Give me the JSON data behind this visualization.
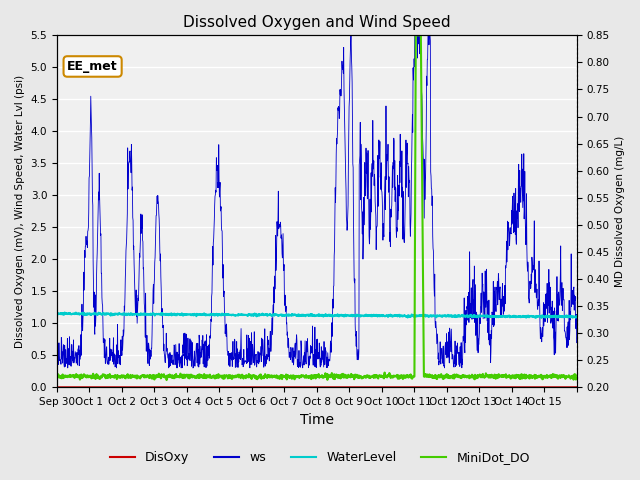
{
  "title": "Dissolved Oxygen and Wind Speed",
  "ylabel_left": "Dissolved Oxygen (mV), Wind Speed, Water Lvl (psi)",
  "ylabel_right": "MD Dissolved Oxygen (mg/L)",
  "xlabel": "Time",
  "ylim_left": [
    0.0,
    5.5
  ],
  "ylim_right": [
    0.2,
    0.85
  ],
  "annotation_text": "EE_met",
  "bg_color": "#e8e8e8",
  "plot_bg_color": "#f0f0f0",
  "disoxy_color": "#cc0000",
  "ws_color": "#0000cc",
  "water_color": "#00cccc",
  "minidot_color": "#44cc00",
  "right_axis_ticks": [
    0.2,
    0.25,
    0.3,
    0.35,
    0.4,
    0.45,
    0.5,
    0.55,
    0.6,
    0.65,
    0.7,
    0.75,
    0.8,
    0.85
  ],
  "left_axis_ticks": [
    0.0,
    0.5,
    1.0,
    1.5,
    2.0,
    2.5,
    3.0,
    3.5,
    4.0,
    4.5,
    5.0,
    5.5
  ],
  "xtick_positions": [
    0,
    1,
    2,
    3,
    4,
    5,
    6,
    7,
    8,
    9,
    10,
    11,
    12,
    13,
    14,
    15,
    16
  ],
  "xtick_labels": [
    "Sep 30",
    "Oct 1",
    "Oct 2",
    "Oct 3",
    "Oct 4",
    "Oct 5",
    "Oct 6",
    "Oct 7",
    "Oct 8",
    "Oct 9",
    "Oct 10",
    "Oct 11",
    "Oct 12",
    "Oct 13",
    "Oct 14",
    "Oct 15",
    ""
  ]
}
